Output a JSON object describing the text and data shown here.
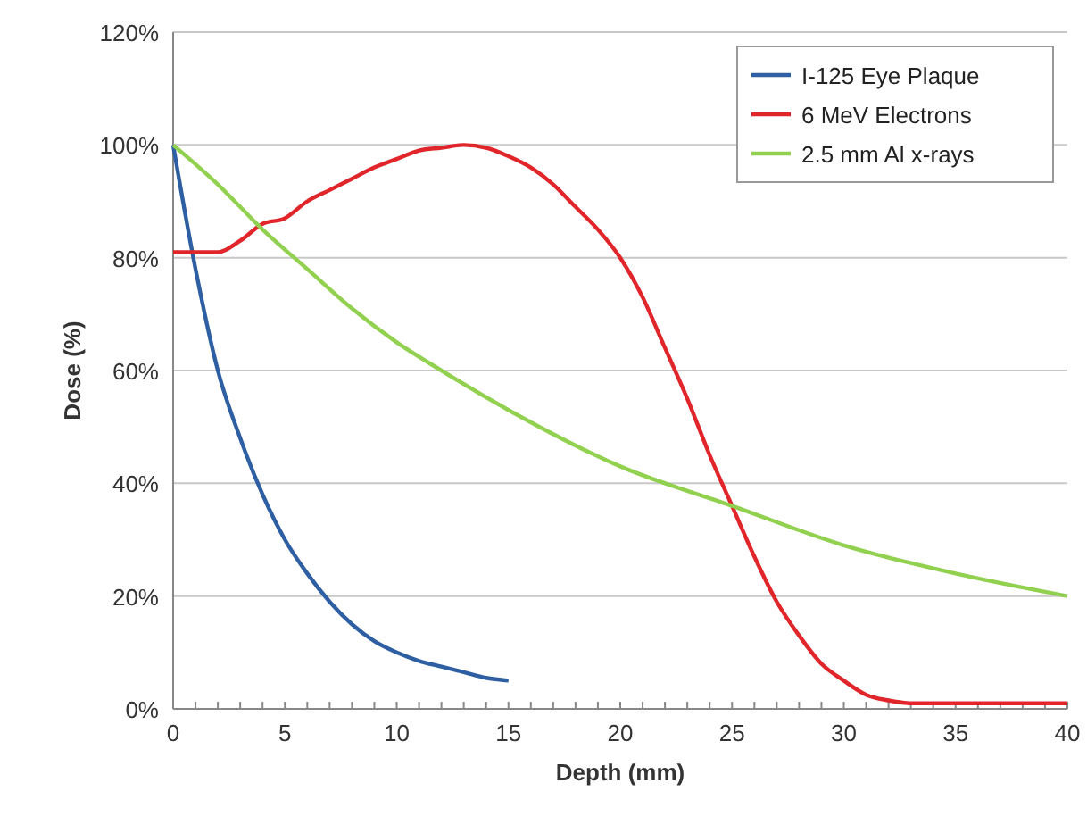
{
  "chart_data": {
    "type": "line",
    "xlabel": "Depth (mm)",
    "ylabel": "Dose (%)",
    "xlim": [
      0,
      40
    ],
    "xticks": [
      0,
      5,
      10,
      15,
      20,
      25,
      30,
      35,
      40
    ],
    "ylim": [
      0,
      120
    ],
    "yticks": [
      {
        "value": 0,
        "label": "0%"
      },
      {
        "value": 20,
        "label": "20%"
      },
      {
        "value": 40,
        "label": "40%"
      },
      {
        "value": 60,
        "label": "60%"
      },
      {
        "value": 80,
        "label": "80%"
      },
      {
        "value": 100,
        "label": "100%"
      },
      {
        "value": 120,
        "label": "120%"
      }
    ],
    "grid": "y",
    "legend": "top right",
    "marker": "none",
    "line_style": "solid",
    "series": [
      {
        "name": "I-125 Eye Plaque",
        "color": "#2e5fa3",
        "x": [
          0,
          1,
          2,
          3,
          4,
          5,
          6,
          7,
          8,
          9,
          10,
          11,
          12,
          13,
          14,
          15
        ],
        "values": [
          100,
          78,
          60,
          48,
          38,
          30,
          24,
          19,
          15,
          12,
          10,
          8.5,
          7.5,
          6.5,
          5.5,
          5
        ]
      },
      {
        "name": "6 MeV Electrons",
        "color": "#e0262a",
        "x": [
          0,
          2,
          3,
          4,
          5,
          6,
          7,
          8,
          9,
          10,
          11,
          12,
          13,
          14,
          15,
          16,
          17,
          18,
          19,
          20,
          21,
          22,
          23,
          24,
          25,
          26,
          27,
          28,
          29,
          30,
          31,
          32,
          33,
          35,
          40
        ],
        "values": [
          81,
          81,
          83,
          86,
          87,
          90,
          92,
          94,
          96,
          97.5,
          99,
          99.5,
          100,
          99.5,
          98,
          96,
          93,
          89,
          85,
          80,
          73,
          64,
          55,
          45,
          36,
          27,
          19,
          13,
          8,
          5,
          2.5,
          1.5,
          1,
          1,
          1
        ]
      },
      {
        "name": "2.5 mm Al x-rays",
        "color": "#92d050",
        "x": [
          0,
          2,
          4,
          6,
          8,
          10,
          12,
          15,
          20,
          25,
          30,
          35,
          40
        ],
        "values": [
          100,
          93,
          85,
          78,
          71,
          65,
          60,
          53,
          43,
          36,
          29,
          24,
          20
        ]
      }
    ]
  }
}
